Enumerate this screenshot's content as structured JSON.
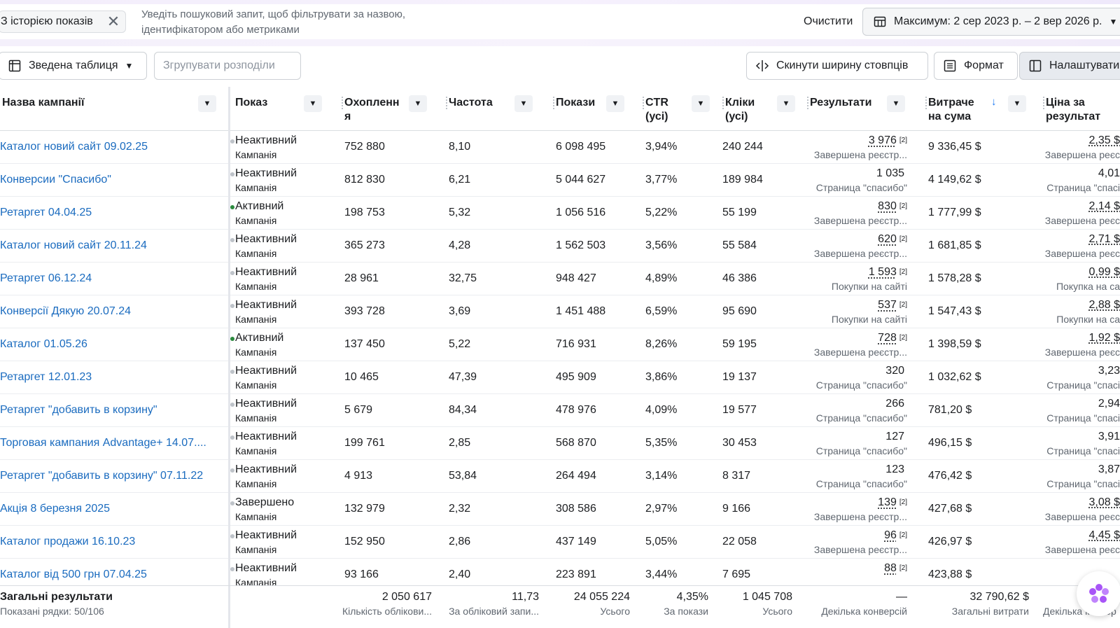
{
  "filter_bar": {
    "chip_label": "З історією показів",
    "search_placeholder_line1": "Уведіть пошуковий запит, щоб фільтрувати за назвою,",
    "search_placeholder_line2": "ідентифікатором або метриками",
    "clear_label": "Очистити",
    "date_range": "Максимум: 2 сер 2023 р. – 2 вер 2026 р."
  },
  "toolbar": {
    "pivot_label": "Зведена таблиця",
    "group_label": "Згрупувати розподіли",
    "reset_widths_label": "Скинути ширину стовпців",
    "format_label": "Формат",
    "settings_label": "Налаштувати"
  },
  "columns": {
    "name": "Назва кампанії",
    "delivery": "Показ",
    "reach_1": "Охопленн",
    "reach_2": "я",
    "frequency": "Частота",
    "impressions": "Покази",
    "ctr_1": "CTR",
    "ctr_2": "(усі)",
    "clicks_1": "Кліки",
    "clicks_2": "(усі)",
    "results": "Результати",
    "spend_1": "Витраче",
    "spend_2": "на сума",
    "cost_1": "Ціна за",
    "cost_2": "результат"
  },
  "rows": [
    {
      "name": "Каталог новий сайт 09.02.25",
      "status": "Неактивний",
      "level": "Кампанія",
      "active": false,
      "reach": "752 880",
      "freq": "8,10",
      "impr": "6 098 495",
      "ctr": "3,94%",
      "clicks": "240 244",
      "result": "3 976",
      "result_tag": "[2]",
      "result_type": "Завершена реєстр...",
      "spend": "9 336,45 $",
      "cost": "2,35 $",
      "cost_type": "Завершена реєс"
    },
    {
      "name": "Конверсии \"Спасибо\"",
      "status": "Неактивний",
      "level": "Кампанія",
      "active": false,
      "reach": "812 830",
      "freq": "6,21",
      "impr": "5 044 627",
      "ctr": "3,77%",
      "clicks": "189 984",
      "result": "1 035",
      "result_tag": "",
      "result_type": "Страница \"спасибо\"",
      "spend": "4 149,62 $",
      "cost": "4,01",
      "cost_type": "Страница \"спасі"
    },
    {
      "name": "Ретаргет 04.04.25",
      "status": "Активний",
      "level": "Кампанія",
      "active": true,
      "reach": "198 753",
      "freq": "5,32",
      "impr": "1 056 516",
      "ctr": "5,22%",
      "clicks": "55 199",
      "result": "830",
      "result_tag": "[2]",
      "result_type": "Завершена реєстр...",
      "spend": "1 777,99 $",
      "cost": "2,14 $",
      "cost_type": "Завершена реєс"
    },
    {
      "name": "Каталог новий сайт 20.11.24",
      "status": "Неактивний",
      "level": "Кампанія",
      "active": false,
      "reach": "365 273",
      "freq": "4,28",
      "impr": "1 562 503",
      "ctr": "3,56%",
      "clicks": "55 584",
      "result": "620",
      "result_tag": "[2]",
      "result_type": "Завершена реєстр...",
      "spend": "1 681,85 $",
      "cost": "2,71 $",
      "cost_type": "Завершена реєс"
    },
    {
      "name": "Ретаргет 06.12.24",
      "status": "Неактивний",
      "level": "Кампанія",
      "active": false,
      "reach": "28 961",
      "freq": "32,75",
      "impr": "948 427",
      "ctr": "4,89%",
      "clicks": "46 386",
      "result": "1 593",
      "result_tag": "[2]",
      "result_type": "Покупки на сайті",
      "spend": "1 578,28 $",
      "cost": "0,99 $",
      "cost_type": "Покупка на са"
    },
    {
      "name": "Конверсії Дякую 20.07.24",
      "status": "Неактивний",
      "level": "Кампанія",
      "active": false,
      "reach": "393 728",
      "freq": "3,69",
      "impr": "1 451 488",
      "ctr": "6,59%",
      "clicks": "95 690",
      "result": "537",
      "result_tag": "[2]",
      "result_type": "Покупки на сайті",
      "spend": "1 547,43 $",
      "cost": "2,88 $",
      "cost_type": "Покупки на са"
    },
    {
      "name": "Каталог 01.05.26",
      "status": "Активний",
      "level": "Кампанія",
      "active": true,
      "reach": "137 450",
      "freq": "5,22",
      "impr": "716 931",
      "ctr": "8,26%",
      "clicks": "59 195",
      "result": "728",
      "result_tag": "[2]",
      "result_type": "Завершена реєстр...",
      "spend": "1 398,59 $",
      "cost": "1,92 $",
      "cost_type": "Завершена реєс"
    },
    {
      "name": "Ретаргет 12.01.23",
      "status": "Неактивний",
      "level": "Кампанія",
      "active": false,
      "reach": "10 465",
      "freq": "47,39",
      "impr": "495 909",
      "ctr": "3,86%",
      "clicks": "19 137",
      "result": "320",
      "result_tag": "",
      "result_type": "Страница \"спасибо\"",
      "spend": "1 032,62 $",
      "cost": "3,23",
      "cost_type": "Страница \"спасі"
    },
    {
      "name": "Ретаргет \"добавить в корзину\"",
      "status": "Неактивний",
      "level": "Кампанія",
      "active": false,
      "reach": "5 679",
      "freq": "84,34",
      "impr": "478 976",
      "ctr": "4,09%",
      "clicks": "19 577",
      "result": "266",
      "result_tag": "",
      "result_type": "Страница \"спасибо\"",
      "spend": "781,20 $",
      "cost": "2,94",
      "cost_type": "Страница \"спасі"
    },
    {
      "name": "Торговая кампания Advantage+ 14.07....",
      "status": "Неактивний",
      "level": "Кампанія",
      "active": false,
      "reach": "199 761",
      "freq": "2,85",
      "impr": "568 870",
      "ctr": "5,35%",
      "clicks": "30 453",
      "result": "127",
      "result_tag": "",
      "result_type": "Страница \"спасибо\"",
      "spend": "496,15 $",
      "cost": "3,91",
      "cost_type": "Страница \"спасі"
    },
    {
      "name": "Ретаргет \"добавить в корзину\" 07.11.22",
      "status": "Неактивний",
      "level": "Кампанія",
      "active": false,
      "reach": "4 913",
      "freq": "53,84",
      "impr": "264 494",
      "ctr": "3,14%",
      "clicks": "8 317",
      "result": "123",
      "result_tag": "",
      "result_type": "Страница \"спасибо\"",
      "spend": "476,42 $",
      "cost": "3,87",
      "cost_type": "Страница \"спасі"
    },
    {
      "name": "Акція 8 березня 2025",
      "status": "Завершено",
      "level": "Кампанія",
      "active": false,
      "reach": "132 979",
      "freq": "2,32",
      "impr": "308 586",
      "ctr": "2,97%",
      "clicks": "9 166",
      "result": "139",
      "result_tag": "[2]",
      "result_type": "Завершена реєстр...",
      "spend": "427,68 $",
      "cost": "3,08 $",
      "cost_type": "Завершена реєс"
    },
    {
      "name": "Каталог продажи 16.10.23",
      "status": "Неактивний",
      "level": "Кампанія",
      "active": false,
      "reach": "152 950",
      "freq": "2,86",
      "impr": "437 149",
      "ctr": "5,05%",
      "clicks": "22 058",
      "result": "96",
      "result_tag": "[2]",
      "result_type": "Завершена реєстр...",
      "spend": "426,97 $",
      "cost": "4,45 $",
      "cost_type": "Завершена реєс"
    },
    {
      "name": "Каталог від 500 грн 07.04.25",
      "status": "Неактивний",
      "level": "Кампанія",
      "active": false,
      "reach": "93 166",
      "freq": "2,40",
      "impr": "223 891",
      "ctr": "3,44%",
      "clicks": "7 695",
      "result": "88",
      "result_tag": "[2]",
      "result_type": "",
      "spend": "423,88 $",
      "cost": "",
      "cost_type": ""
    }
  ],
  "footer": {
    "title": "Загальні результати",
    "rows_shown": "Показані рядки: 50/106",
    "reach": "2 050 617",
    "reach_sub": "Кількість облікови...",
    "freq": "11,73",
    "freq_sub": "За обліковий запи...",
    "impr": "24 055 224",
    "impr_sub": "Усього",
    "ctr": "4,35%",
    "ctr_sub": "За покази",
    "clicks": "1 045 708",
    "clicks_sub": "Усього",
    "results": "—",
    "results_sub": "Декілька конверсій",
    "spend": "32 790,62 $",
    "spend_sub": "Загальні витрати",
    "cost_sub": "Декілька конвер"
  },
  "colors": {
    "link": "#1a6bbf",
    "active_dot": "#2b8a3e",
    "inactive_dot": "#bec3c9",
    "accent_sort": "#1877f2"
  }
}
